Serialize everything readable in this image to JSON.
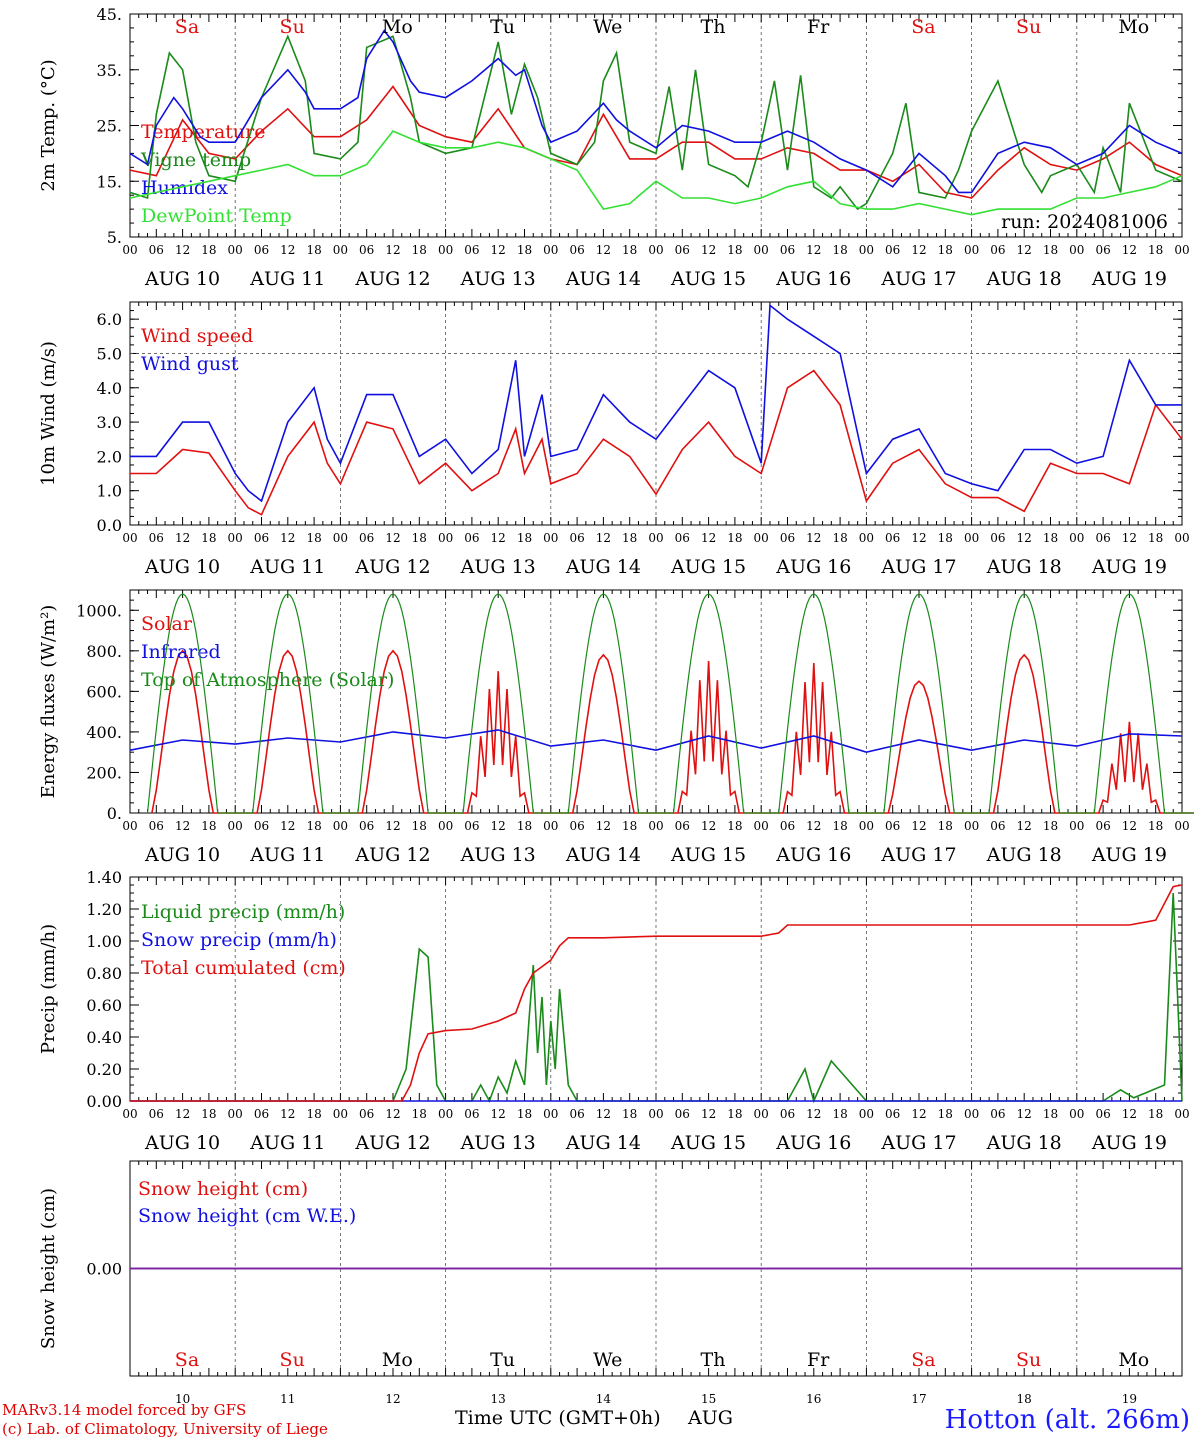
{
  "colors": {
    "red": "#e01010",
    "green": "#1a8a1a",
    "blue": "#1010e0",
    "lightgreen": "#33e033",
    "purple": "#8020a0"
  },
  "days": [
    {
      "abbr": "Sa",
      "date": "AUG 10",
      "num": "10",
      "weekend": true
    },
    {
      "abbr": "Su",
      "date": "AUG 11",
      "num": "11",
      "weekend": true
    },
    {
      "abbr": "Mo",
      "date": "AUG 12",
      "num": "12",
      "weekend": false
    },
    {
      "abbr": "Tu",
      "date": "AUG 13",
      "num": "13",
      "weekend": false
    },
    {
      "abbr": "We",
      "date": "AUG 14",
      "num": "14",
      "weekend": false
    },
    {
      "abbr": "Th",
      "date": "AUG 15",
      "num": "15",
      "weekend": false
    },
    {
      "abbr": "Fr",
      "date": "AUG 16",
      "num": "16",
      "weekend": false
    },
    {
      "abbr": "Sa",
      "date": "AUG 17",
      "num": "17",
      "weekend": true
    },
    {
      "abbr": "Su",
      "date": "AUG 18",
      "num": "18",
      "weekend": true
    },
    {
      "abbr": "Mo",
      "date": "AUG 19",
      "num": "19",
      "weekend": false
    }
  ],
  "hour_ticks": [
    "00",
    "06",
    "12",
    "18"
  ],
  "last_tick": "00",
  "run_label": "run: 2024081006",
  "footer": {
    "model": "MARv3.14 model forced by GFS",
    "copyright": "(c) Lab. of Climatology, University of Liege",
    "xlabel": "Time UTC (GMT+0h)",
    "month": "AUG",
    "station": "Hotton (alt. 266m)"
  },
  "chart_data": [
    {
      "id": "temp",
      "type": "line",
      "ylabel": "2m Temp. (°C)",
      "ylim": [
        5,
        45
      ],
      "yticks": [
        {
          "v": 5,
          "t": "5."
        },
        {
          "v": 15,
          "t": "15."
        },
        {
          "v": 25,
          "t": "25."
        },
        {
          "v": 35,
          "t": "35."
        },
        {
          "v": 45,
          "t": "45."
        }
      ],
      "series": [
        {
          "name": "Temperature",
          "color": "#e01010",
          "x": [
            0,
            6,
            12,
            18,
            24,
            30,
            36,
            42,
            48,
            54,
            60,
            66,
            72,
            78,
            84,
            90,
            96,
            102,
            108,
            114,
            120,
            126,
            132,
            138,
            144,
            150,
            156,
            162,
            168,
            174,
            180,
            186,
            192,
            198,
            204,
            210,
            216,
            222,
            228,
            234,
            240
          ],
          "y": [
            17,
            16,
            26,
            20,
            19,
            24,
            28,
            23,
            23,
            26,
            32,
            25,
            23,
            22,
            28,
            21,
            19,
            18,
            27,
            19,
            19,
            22,
            22,
            19,
            19,
            21,
            20,
            17,
            17,
            15,
            18,
            13,
            12,
            17,
            21,
            18,
            17,
            19,
            22,
            18,
            16
          ]
        },
        {
          "name": "Vigne temp",
          "color": "#1a8a1a",
          "x": [
            0,
            4,
            6,
            9,
            12,
            15,
            18,
            24,
            30,
            36,
            40,
            42,
            48,
            52,
            54,
            60,
            64,
            66,
            72,
            78,
            84,
            87,
            90,
            93,
            96,
            102,
            106,
            108,
            111,
            114,
            120,
            123,
            126,
            129,
            132,
            138,
            141,
            144,
            147,
            150,
            153,
            156,
            160,
            162,
            166,
            168,
            174,
            177,
            180,
            186,
            189,
            192,
            198,
            204,
            208,
            210,
            216,
            220,
            222,
            226,
            228,
            234,
            240
          ],
          "y": [
            13,
            12,
            27,
            38,
            35,
            22,
            16,
            15,
            30,
            41,
            33,
            20,
            19,
            22,
            39,
            41,
            30,
            22,
            20,
            21,
            40,
            27,
            36,
            30,
            20,
            18,
            22,
            33,
            38,
            22,
            20,
            32,
            17,
            35,
            18,
            16,
            14,
            22,
            33,
            17,
            34,
            14,
            12,
            14,
            10,
            11,
            20,
            29,
            13,
            12,
            17,
            24,
            33,
            18,
            13,
            16,
            18,
            13,
            21,
            13,
            29,
            17,
            15
          ]
        },
        {
          "name": "Humidex",
          "color": "#1010e0",
          "x": [
            0,
            4,
            6,
            10,
            12,
            16,
            18,
            24,
            30,
            36,
            40,
            42,
            48,
            52,
            54,
            58,
            60,
            64,
            66,
            72,
            78,
            84,
            88,
            90,
            94,
            96,
            102,
            108,
            111,
            114,
            120,
            126,
            132,
            138,
            144,
            150,
            156,
            162,
            168,
            174,
            180,
            186,
            189,
            192,
            198,
            204,
            210,
            216,
            222,
            228,
            234,
            240
          ],
          "y": [
            20,
            18,
            25,
            30,
            28,
            23,
            22,
            22,
            30,
            35,
            31,
            28,
            28,
            30,
            37,
            42,
            40,
            33,
            31,
            30,
            33,
            37,
            34,
            35,
            25,
            22,
            24,
            29,
            26,
            24,
            21,
            25,
            24,
            22,
            22,
            24,
            22,
            19,
            17,
            14,
            20,
            16,
            13,
            13,
            20,
            22,
            21,
            18,
            20,
            25,
            22,
            20
          ]
        },
        {
          "name": "DewPoint Temp",
          "color": "#33e033",
          "x": [
            0,
            6,
            12,
            18,
            24,
            30,
            36,
            42,
            48,
            54,
            60,
            66,
            72,
            78,
            84,
            90,
            96,
            102,
            108,
            114,
            120,
            126,
            132,
            138,
            144,
            150,
            156,
            162,
            168,
            174,
            180,
            186,
            192,
            198,
            204,
            210,
            216,
            222,
            228,
            234,
            240
          ],
          "y": [
            12,
            13,
            14,
            15,
            16,
            17,
            18,
            16,
            16,
            18,
            24,
            22,
            21,
            21,
            22,
            21,
            19,
            17,
            10,
            11,
            15,
            12,
            12,
            11,
            12,
            14,
            15,
            11,
            10,
            10,
            11,
            10,
            9,
            10,
            10,
            10,
            12,
            12,
            13,
            14,
            16
          ]
        }
      ]
    },
    {
      "id": "wind",
      "type": "line",
      "ylabel": "10m Wind (m/s)",
      "ylim": [
        0,
        6.5
      ],
      "yticks": [
        {
          "v": 0,
          "t": "0.0"
        },
        {
          "v": 1,
          "t": "1.0"
        },
        {
          "v": 2,
          "t": "2.0"
        },
        {
          "v": 3,
          "t": "3.0"
        },
        {
          "v": 4,
          "t": "4.0"
        },
        {
          "v": 5,
          "t": "5.0"
        },
        {
          "v": 6,
          "t": "6.0"
        }
      ],
      "hline": 5,
      "series": [
        {
          "name": "Wind speed",
          "color": "#e01010",
          "x": [
            0,
            6,
            12,
            18,
            24,
            27,
            30,
            36,
            42,
            45,
            48,
            54,
            60,
            66,
            72,
            78,
            84,
            88,
            90,
            94,
            96,
            102,
            108,
            114,
            120,
            126,
            132,
            138,
            144,
            150,
            156,
            162,
            168,
            174,
            180,
            186,
            192,
            198,
            204,
            210,
            216,
            222,
            228,
            234,
            240
          ],
          "y": [
            1.5,
            1.5,
            2.2,
            2.1,
            1.0,
            0.5,
            0.3,
            2.0,
            3.0,
            1.8,
            1.2,
            3.0,
            2.8,
            1.2,
            1.8,
            1.0,
            1.5,
            2.8,
            1.5,
            2.5,
            1.2,
            1.5,
            2.5,
            2.0,
            0.9,
            2.2,
            3.0,
            2.0,
            1.5,
            4.0,
            4.5,
            3.5,
            0.7,
            1.8,
            2.2,
            1.2,
            0.8,
            0.8,
            0.4,
            1.8,
            1.5,
            1.5,
            1.2,
            3.5,
            2.5
          ]
        },
        {
          "name": "Wind gust",
          "color": "#1010e0",
          "x": [
            0,
            6,
            12,
            18,
            24,
            27,
            30,
            36,
            42,
            45,
            48,
            54,
            60,
            66,
            72,
            78,
            84,
            88,
            90,
            94,
            96,
            102,
            108,
            114,
            120,
            126,
            132,
            138,
            144,
            146,
            150,
            156,
            162,
            168,
            174,
            180,
            186,
            192,
            198,
            204,
            210,
            216,
            222,
            228,
            234,
            240
          ],
          "y": [
            2.0,
            2.0,
            3.0,
            3.0,
            1.5,
            1.0,
            0.7,
            3.0,
            4.0,
            2.5,
            1.8,
            3.8,
            3.8,
            2.0,
            2.5,
            1.5,
            2.2,
            4.8,
            2.0,
            3.8,
            2.0,
            2.2,
            3.8,
            3.0,
            2.5,
            3.5,
            4.5,
            4.0,
            1.8,
            6.4,
            6.0,
            5.5,
            5.0,
            1.5,
            2.5,
            2.8,
            1.5,
            1.2,
            1.0,
            2.2,
            2.2,
            1.8,
            2.0,
            4.8,
            3.5,
            3.5
          ]
        }
      ]
    },
    {
      "id": "energy",
      "type": "line",
      "ylabel": "Energy fluxes (W/m²)",
      "ylim": [
        0,
        1100
      ],
      "yticks": [
        {
          "v": 0,
          "t": "0."
        },
        {
          "v": 200,
          "t": "200."
        },
        {
          "v": 400,
          "t": "400."
        },
        {
          "v": 600,
          "t": "600."
        },
        {
          "v": 800,
          "t": "800."
        },
        {
          "v": 1000,
          "t": "1000."
        }
      ],
      "series": [
        {
          "name": "Solar",
          "color": "#e01010",
          "profile": "solar",
          "peaks": [
            800,
            800,
            800,
            700,
            780,
            750,
            740,
            650,
            780,
            450
          ]
        },
        {
          "name": "Infrared",
          "color": "#1010e0",
          "profile": "ir",
          "x": [
            0,
            12,
            24,
            36,
            48,
            60,
            72,
            84,
            96,
            108,
            120,
            132,
            144,
            156,
            168,
            180,
            192,
            204,
            216,
            228,
            240
          ],
          "y": [
            310,
            360,
            340,
            370,
            350,
            400,
            370,
            410,
            330,
            360,
            310,
            380,
            320,
            380,
            300,
            360,
            310,
            360,
            330,
            390,
            380
          ]
        },
        {
          "name": "Top of Atmosphere (Solar)",
          "color": "#1a8a1a",
          "profile": "toa",
          "peak": 1080
        }
      ]
    },
    {
      "id": "precip",
      "type": "line",
      "ylabel": "Precip (mm/h)",
      "ylim": [
        0,
        1.4
      ],
      "yticks": [
        {
          "v": 0,
          "t": "0.00"
        },
        {
          "v": 0.2,
          "t": "0.20"
        },
        {
          "v": 0.4,
          "t": "0.40"
        },
        {
          "v": 0.6,
          "t": "0.60"
        },
        {
          "v": 0.8,
          "t": "0.80"
        },
        {
          "v": 1.0,
          "t": "1.00"
        },
        {
          "v": 1.2,
          "t": "1.20"
        },
        {
          "v": 1.4,
          "t": "1.40"
        }
      ],
      "series": [
        {
          "name": "Liquid precip (mm/h)",
          "color": "#1a8a1a",
          "x": [
            0,
            60,
            63,
            66,
            68,
            70,
            72,
            78,
            80,
            82,
            84,
            86,
            88,
            90,
            91,
            92,
            93,
            94,
            95,
            96,
            97,
            98,
            100,
            102,
            120,
            140,
            145,
            150,
            154,
            156,
            160,
            168,
            200,
            222,
            226,
            229,
            236,
            238,
            240
          ],
          "y": [
            0,
            0,
            0.2,
            0.95,
            0.9,
            0.1,
            0,
            0,
            0.1,
            0,
            0.15,
            0.05,
            0.25,
            0.1,
            0.5,
            0.85,
            0.3,
            0.65,
            0.1,
            0.5,
            0.2,
            0.7,
            0.1,
            0,
            0,
            0,
            0,
            0,
            0.2,
            0,
            0.25,
            0,
            0,
            0,
            0.07,
            0.02,
            0.1,
            1.3,
            0
          ]
        },
        {
          "name": "Snow precip (mm/h)",
          "color": "#1010e0",
          "x": [
            0,
            240
          ],
          "y": [
            0,
            0
          ]
        },
        {
          "name": "Total cumulated (cm)",
          "color": "#e01010",
          "x": [
            0,
            62,
            64,
            66,
            68,
            72,
            78,
            84,
            88,
            90,
            92,
            96,
            98,
            100,
            108,
            120,
            144,
            148,
            150,
            168,
            192,
            216,
            228,
            234,
            238,
            240
          ],
          "y": [
            0,
            0,
            0.1,
            0.3,
            0.42,
            0.44,
            0.45,
            0.5,
            0.55,
            0.7,
            0.8,
            0.88,
            0.97,
            1.02,
            1.02,
            1.03,
            1.03,
            1.05,
            1.1,
            1.1,
            1.1,
            1.1,
            1.1,
            1.13,
            1.34,
            1.35
          ]
        }
      ]
    },
    {
      "id": "snow",
      "type": "line",
      "ylabel": "Snow height (cm)",
      "ylim": [
        -1,
        1
      ],
      "yticks": [
        {
          "v": 0,
          "t": "0.00"
        }
      ],
      "series": [
        {
          "name": "Snow height (cm)",
          "color": "#e01010",
          "x": [
            0,
            240
          ],
          "y": [
            0,
            0
          ]
        },
        {
          "name": "Snow height (cm W.E.)",
          "color": "#1010e0",
          "x": [
            0,
            240
          ],
          "y": [
            0,
            0
          ]
        }
      ]
    }
  ]
}
